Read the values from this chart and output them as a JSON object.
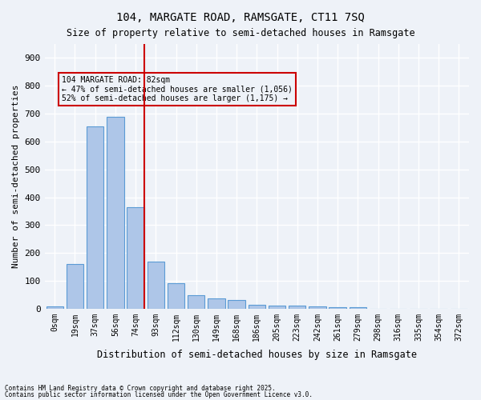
{
  "title1": "104, MARGATE ROAD, RAMSGATE, CT11 7SQ",
  "title2": "Size of property relative to semi-detached houses in Ramsgate",
  "xlabel": "Distribution of semi-detached houses by size in Ramsgate",
  "ylabel": "Number of semi-detached properties",
  "categories": [
    "0sqm",
    "19sqm",
    "37sqm",
    "56sqm",
    "74sqm",
    "93sqm",
    "112sqm",
    "130sqm",
    "149sqm",
    "168sqm",
    "186sqm",
    "205sqm",
    "223sqm",
    "242sqm",
    "261sqm",
    "279sqm",
    "298sqm",
    "316sqm",
    "335sqm",
    "354sqm",
    "372sqm"
  ],
  "values": [
    7,
    160,
    655,
    690,
    365,
    170,
    90,
    48,
    38,
    30,
    14,
    12,
    10,
    9,
    5,
    4,
    0,
    0,
    0,
    0,
    0
  ],
  "bar_color": "#aec6e8",
  "bar_edge_color": "#5b9bd5",
  "background_color": "#eef2f8",
  "grid_color": "#ffffff",
  "annotation_text": "104 MARGATE ROAD: 82sqm\n← 47% of semi-detached houses are smaller (1,056)\n52% of semi-detached houses are larger (1,175) →",
  "vline_pos": 4.42,
  "vline_color": "#cc0000",
  "box_color": "#cc0000",
  "footnote1": "Contains HM Land Registry data © Crown copyright and database right 2025.",
  "footnote2": "Contains public sector information licensed under the Open Government Licence v3.0.",
  "ylim": [
    0,
    950
  ],
  "yticks": [
    0,
    100,
    200,
    300,
    400,
    500,
    600,
    700,
    800,
    900
  ]
}
